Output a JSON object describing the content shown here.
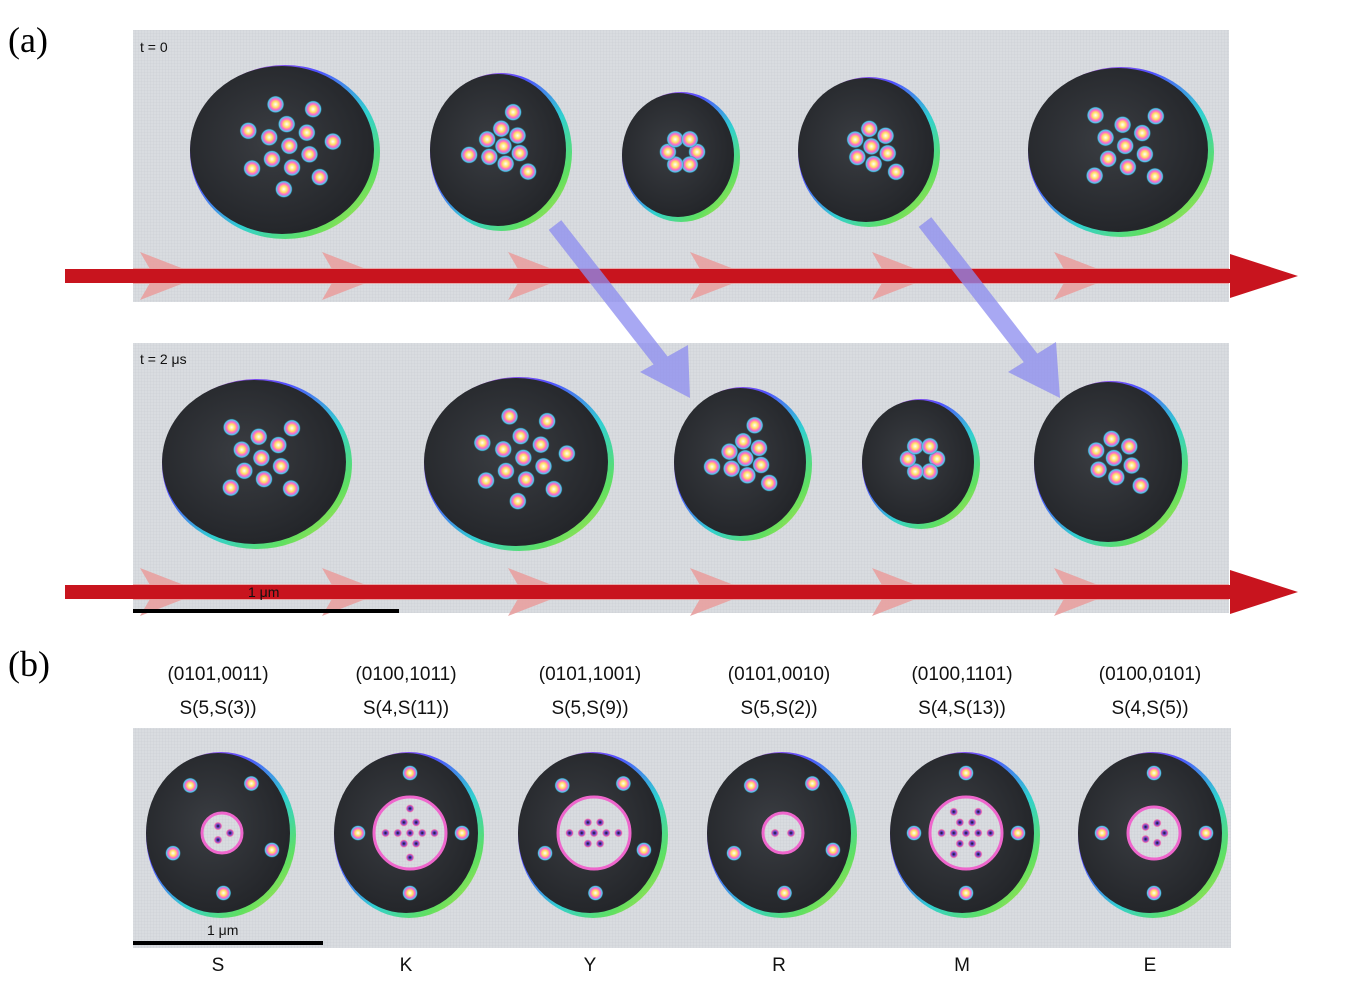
{
  "panel_a": {
    "label": "(a)",
    "row1_time": "t = 0",
    "row2_time": "t = 2 μs",
    "scale_bar": "1 μm",
    "row1_skyrmion_counts": [
      14,
      10,
      6,
      8,
      11
    ],
    "row2_skyrmion_counts": [
      11,
      14,
      10,
      6,
      8
    ]
  },
  "panel_b": {
    "label": "(b)",
    "scale_bar": "1 μm",
    "items": [
      {
        "code": "(0101,0011)",
        "formula": "S(5,S(3))",
        "letter": "S",
        "outer": 5,
        "inner": 3
      },
      {
        "code": "(0100,1011)",
        "formula": "S(4,S(11))",
        "letter": "K",
        "outer": 4,
        "inner": 11
      },
      {
        "code": "(0101,1001)",
        "formula": "S(5,S(9))",
        "letter": "Y",
        "outer": 5,
        "inner": 9
      },
      {
        "code": "(0101,0010)",
        "formula": "S(5,S(2))",
        "letter": "R",
        "outer": 5,
        "inner": 2
      },
      {
        "code": "(0100,1101)",
        "formula": "S(4,S(13))",
        "letter": "M",
        "outer": 4,
        "inner": 13
      },
      {
        "code": "(0100,0101)",
        "formula": "S(4,S(5))",
        "letter": "E",
        "outer": 4,
        "inner": 5
      }
    ]
  },
  "colors": {
    "track": "#d9dce0",
    "bag": "#2d3035",
    "current_arrow": "#c8141e",
    "flow_arrow": "#e8a0a0",
    "shift_arrow": "#8c8cf0"
  }
}
